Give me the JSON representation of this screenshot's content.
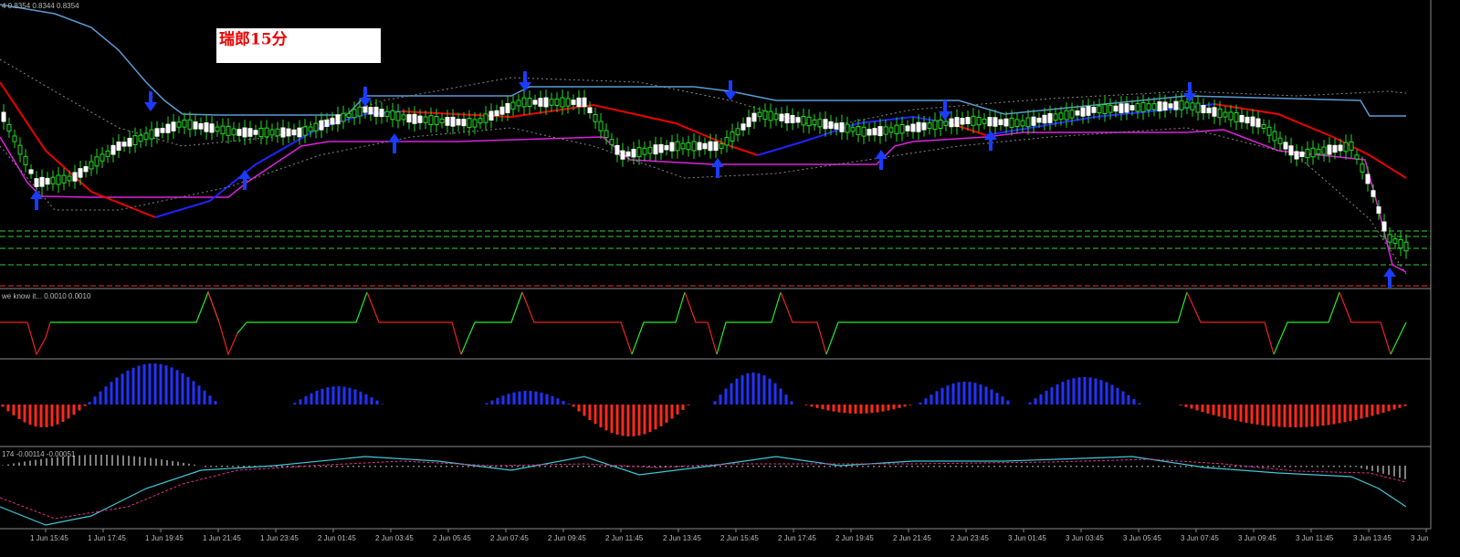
{
  "header": {
    "title": "瑞郎15分",
    "price_info": "4 0.8354 0.8344 0.8354"
  },
  "panels": {
    "oscillator_label": "we know it... 0.0010 0.0010",
    "macd_label": "174 -0.00114 -0.00051"
  },
  "time_axis": [
    "1 Jun 15:45",
    "1 Jun 17:45",
    "1 Jun 19:45",
    "1 Jun 21:45",
    "1 Jun 23:45",
    "2 Jun 01:45",
    "2 Jun 03:45",
    "2 Jun 05:45",
    "2 Jun 07:45",
    "2 Jun 09:45",
    "2 Jun 11:45",
    "2 Jun 13:45",
    "2 Jun 15:45",
    "2 Jun 17:45",
    "2 Jun 19:45",
    "2 Jun 21:45",
    "2 Jun 23:45",
    "3 Jun 01:45",
    "3 Jun 03:45",
    "3 Jun 05:45",
    "3 Jun 07:45",
    "3 Jun 09:45",
    "3 Jun 11:45",
    "3 Jun 13:45",
    "3 Jun"
  ]
}
